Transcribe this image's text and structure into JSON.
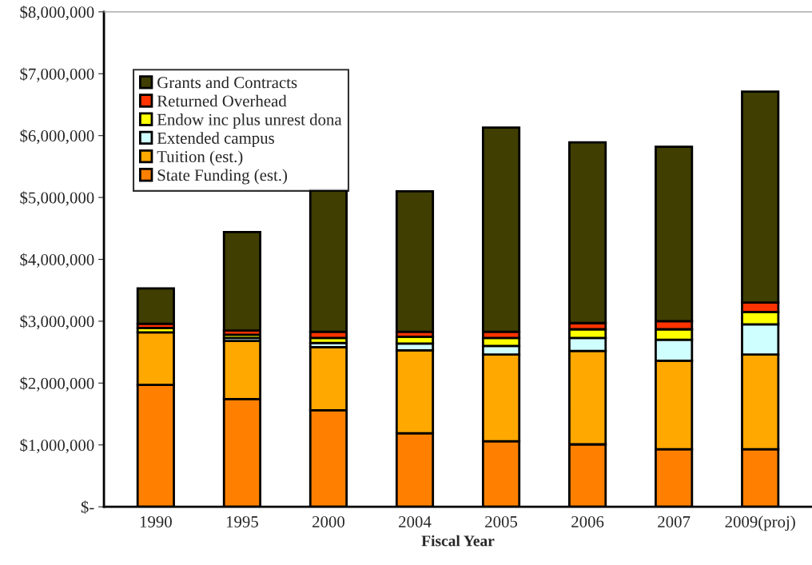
{
  "chart_data": {
    "type": "bar",
    "stacked": true,
    "xlabel": "Fiscal Year",
    "categories": [
      "1990",
      "1995",
      "2000",
      "2004",
      "2005",
      "2006",
      "2007",
      "2009(proj)"
    ],
    "series": [
      {
        "name": "State Funding (est.)",
        "color": "#ff8000",
        "values": [
          1970000,
          1740000,
          1560000,
          1190000,
          1060000,
          1010000,
          930000,
          930000
        ]
      },
      {
        "name": "Tuition (est.)",
        "color": "#ffa800",
        "values": [
          850000,
          940000,
          1020000,
          1340000,
          1400000,
          1510000,
          1430000,
          1530000
        ]
      },
      {
        "name": "Extended campus",
        "color": "#d0ffff",
        "values": [
          null,
          50000,
          70000,
          110000,
          140000,
          210000,
          340000,
          490000
        ]
      },
      {
        "name": "Endow inc plus unrest dona",
        "color": "#ffff00",
        "values": [
          70000,
          50000,
          80000,
          110000,
          130000,
          140000,
          170000,
          200000
        ]
      },
      {
        "name": "Returned Overhead",
        "color": "#ff3300",
        "values": [
          70000,
          70000,
          100000,
          80000,
          100000,
          100000,
          130000,
          150000
        ]
      },
      {
        "name": "Grants and Contracts",
        "color": "#403e00",
        "values": [
          570000,
          1590000,
          2290000,
          2270000,
          3300000,
          2920000,
          2820000,
          3410000
        ]
      }
    ],
    "ylim": [
      0,
      8000000
    ],
    "yticks": [
      {
        "value": 0,
        "label": "$-"
      },
      {
        "value": 1000000,
        "label": "$1,000,000"
      },
      {
        "value": 2000000,
        "label": "$2,000,000"
      },
      {
        "value": 3000000,
        "label": "$3,000,000"
      },
      {
        "value": 4000000,
        "label": "$4,000,000"
      },
      {
        "value": 5000000,
        "label": "$5,000,000"
      },
      {
        "value": 6000000,
        "label": "$6,000,000"
      },
      {
        "value": 7000000,
        "label": "$7,000,000"
      },
      {
        "value": 8000000,
        "label": "$8,000,000"
      }
    ],
    "grid": false,
    "legend": "top left"
  }
}
